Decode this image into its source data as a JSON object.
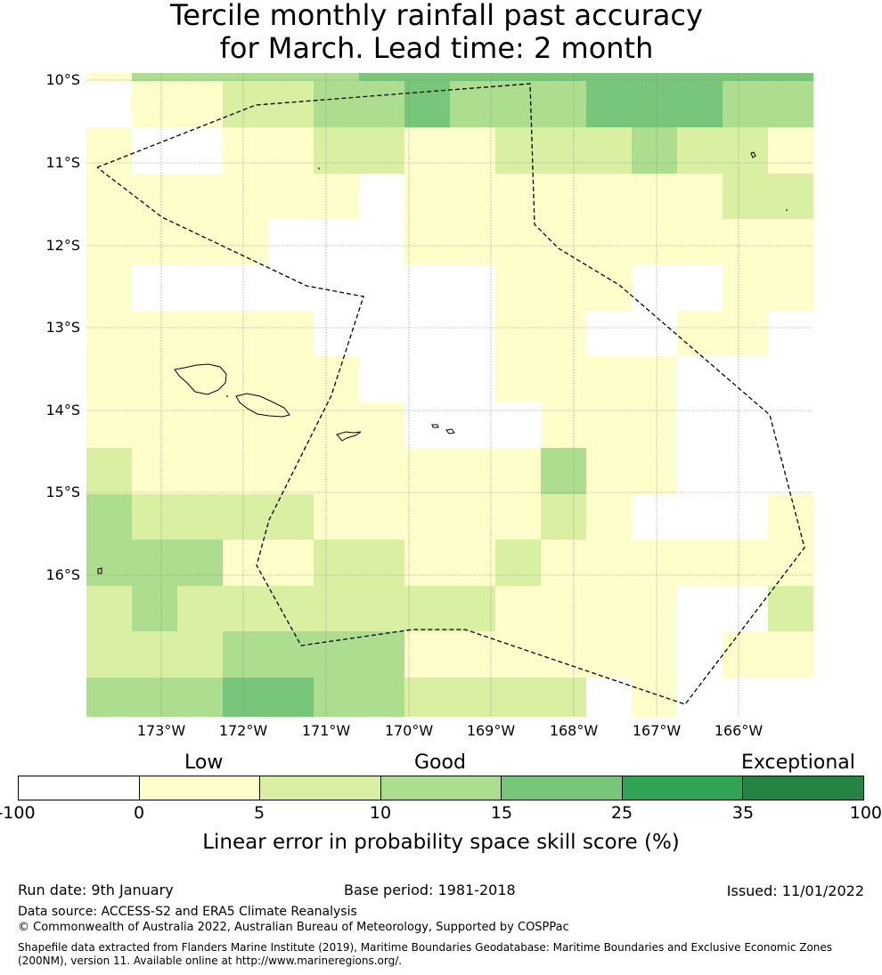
{
  "title": {
    "line1": "Tercile monthly rainfall past accuracy",
    "line2": "for March. Lead time: 2 month"
  },
  "map": {
    "lat_labels": [
      "10°S",
      "11°S",
      "12°S",
      "13°S",
      "14°S",
      "15°S",
      "16°S"
    ],
    "lon_labels": [
      "173°W",
      "172°W",
      "171°W",
      "170°W",
      "169°W",
      "168°W",
      "167°W",
      "166°W"
    ],
    "legend_colors": [
      "#ffffff",
      "#fefecb",
      "#d9f0a3",
      "#addd8e",
      "#78c679",
      "#31a354",
      "#238443"
    ],
    "skill_grid": {
      "description": "class index per cell: 0=-100..0, 1=0..5, 2=5..10, 3=10..15, 4=15..25",
      "rows": [
        [
          1,
          3,
          3,
          3,
          3,
          3,
          4,
          4,
          4,
          4,
          4,
          4,
          4,
          4,
          4,
          4
        ],
        [
          0,
          1,
          1,
          2,
          2,
          3,
          3,
          4,
          3,
          3,
          3,
          4,
          4,
          4,
          3,
          3
        ],
        [
          1,
          0,
          0,
          1,
          1,
          2,
          2,
          1,
          1,
          2,
          2,
          2,
          3,
          2,
          2,
          1
        ],
        [
          1,
          1,
          1,
          1,
          1,
          1,
          0,
          1,
          1,
          1,
          1,
          1,
          1,
          1,
          2,
          2
        ],
        [
          1,
          1,
          1,
          1,
          0,
          0,
          0,
          1,
          1,
          1,
          1,
          1,
          1,
          1,
          1,
          1
        ],
        [
          1,
          0,
          0,
          0,
          0,
          0,
          0,
          0,
          0,
          1,
          1,
          1,
          0,
          0,
          1,
          1
        ],
        [
          1,
          1,
          1,
          1,
          1,
          0,
          0,
          0,
          0,
          1,
          1,
          0,
          0,
          1,
          1,
          0
        ],
        [
          1,
          1,
          1,
          1,
          1,
          1,
          0,
          0,
          0,
          1,
          1,
          1,
          1,
          0,
          0,
          0
        ],
        [
          1,
          1,
          1,
          1,
          1,
          1,
          1,
          0,
          0,
          0,
          1,
          1,
          1,
          0,
          0,
          0
        ],
        [
          2,
          1,
          1,
          1,
          1,
          1,
          1,
          1,
          1,
          1,
          3,
          1,
          1,
          0,
          0,
          0
        ],
        [
          3,
          2,
          2,
          2,
          2,
          1,
          1,
          1,
          1,
          1,
          2,
          1,
          0,
          0,
          0,
          1
        ],
        [
          3,
          3,
          3,
          1,
          1,
          2,
          2,
          1,
          1,
          2,
          1,
          1,
          1,
          1,
          1,
          1
        ],
        [
          2,
          3,
          2,
          2,
          2,
          2,
          2,
          2,
          2,
          1,
          1,
          1,
          1,
          0,
          0,
          2
        ],
        [
          2,
          2,
          2,
          3,
          3,
          3,
          3,
          1,
          1,
          1,
          1,
          1,
          1,
          0,
          1,
          1
        ],
        [
          3,
          3,
          3,
          4,
          4,
          3,
          3,
          2,
          2,
          2,
          2,
          0,
          1,
          0,
          0,
          0
        ]
      ]
    }
  },
  "colorbar": {
    "category_low": "Low",
    "category_good": "Good",
    "category_exceptional": "Exceptional",
    "ticks": [
      "-100",
      "0",
      "5",
      "10",
      "15",
      "25",
      "35",
      "100"
    ],
    "label": "Linear error in probability space skill score (%)"
  },
  "footer": {
    "run_date": "Run date: 9th January",
    "base_period": "Base period: 1981-2018",
    "issued": "Issued: 11/01/2022",
    "data_source": "Data source: ACCESS-S2 and ERA5 Climate Reanalysis",
    "copyright": "© Commonwealth of Australia 2022, Australian Bureau of Meteorology, Supported by COSPPac",
    "shapefile_line1": "Shapefile data extracted from Flanders Marine Institute (2019), Maritime Boundaries Geodatabase: Maritime Boundaries and Exclusive Economic Zones",
    "shapefile_line2": "(200NM), version 11. Available online at http://www.marineregions.org/."
  }
}
